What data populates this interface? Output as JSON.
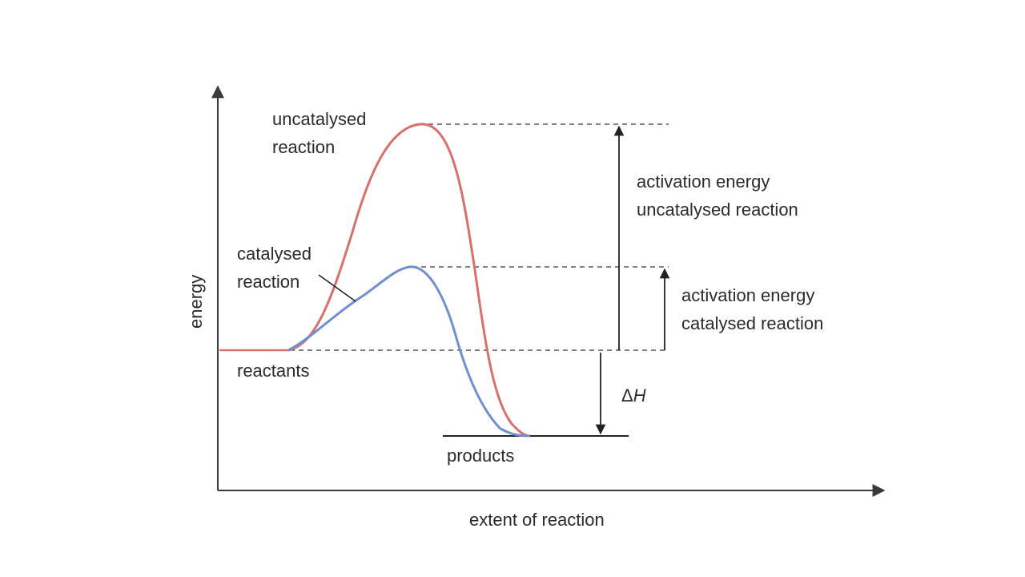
{
  "diagram": {
    "axes": {
      "y_label": "energy",
      "x_label": "extent of reaction"
    },
    "curves": {
      "uncatalysed": {
        "label_line1": "uncatalysed",
        "label_line2": "reaction",
        "color": "#d9706a"
      },
      "catalysed": {
        "label_line1": "catalysed",
        "label_line2": "reaction",
        "color": "#6f8fd0"
      }
    },
    "levels": {
      "reactants": "reactants",
      "products": "products"
    },
    "annotations": {
      "ea_uncat_line1": "activation energy",
      "ea_uncat_line2": "uncatalysed reaction",
      "ea_cat_line1": "activation energy",
      "ea_cat_line2": "catalysed reaction",
      "delta_h_symbol": "Δ",
      "delta_h_var": "H"
    }
  }
}
